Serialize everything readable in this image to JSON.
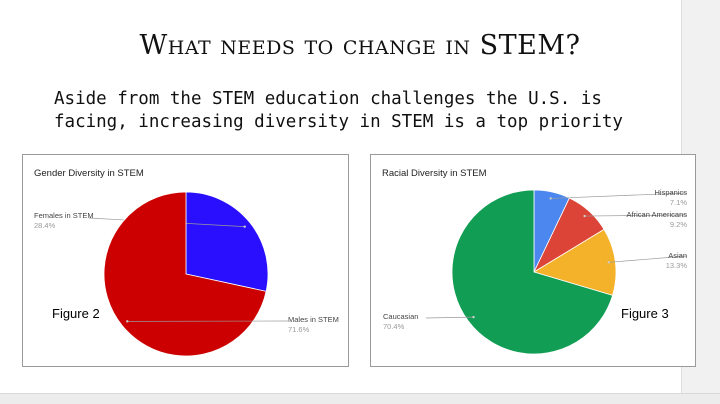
{
  "slide": {
    "title": "What needs to change in STEM?",
    "body_line1": "Aside from the STEM education challenges the U.S. is",
    "body_line2": "facing, increasing diversity in STEM is a top priority"
  },
  "colors": {
    "females": "#2a0fff",
    "males": "#cc0000",
    "hispanics": "#4b87ee",
    "african_americans": "#db4437",
    "asian": "#f4b22a",
    "caucasian": "#119e54"
  },
  "chart_data": [
    {
      "type": "pie",
      "title": "Gender Diversity in STEM",
      "annotation": "Figure 2",
      "slices": [
        {
          "name": "Females in STEM",
          "value": 28.4,
          "label": "28.4%",
          "color": "#2a0fff"
        },
        {
          "name": "Males in STEM",
          "value": 71.6,
          "label": "71.6%",
          "color": "#cc0000"
        }
      ]
    },
    {
      "type": "pie",
      "title": "Racial Diversity in STEM",
      "annotation": "Figure 3",
      "slices": [
        {
          "name": "Hispanics",
          "value": 7.1,
          "label": "7.1%",
          "color": "#4b87ee"
        },
        {
          "name": "African Americans",
          "value": 9.2,
          "label": "9.2%",
          "color": "#db4437"
        },
        {
          "name": "Asian",
          "value": 13.3,
          "label": "13.3%",
          "color": "#f4b22a"
        },
        {
          "name": "Caucasian",
          "value": 70.4,
          "label": "70.4%",
          "color": "#119e54"
        }
      ]
    }
  ]
}
